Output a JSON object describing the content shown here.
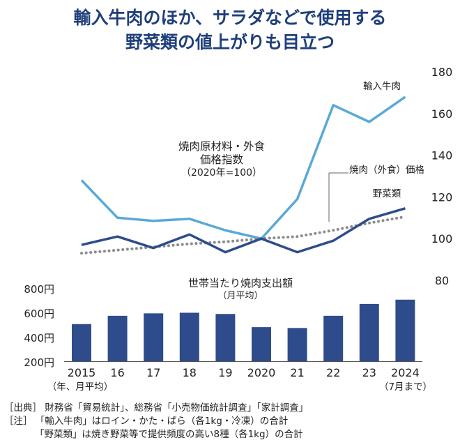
{
  "title_lines": [
    "輸入牛肉のほか、サラダなどで使用する",
    "野菜類の値上がりも目立つ"
  ],
  "chart_data": [
    {
      "type": "line",
      "title_lines": [
        "焼肉原材料・外食",
        "価格指数",
        "（2020年=100）"
      ],
      "x": [
        2015,
        2016,
        2017,
        2018,
        2019,
        2020,
        2021,
        2022,
        2023,
        2024
      ],
      "y_ticks": [
        180,
        160,
        140,
        120,
        100,
        80
      ],
      "ylim": [
        80,
        180
      ],
      "series": [
        {
          "name": "輸入牛肉",
          "color": "#5aa9d6",
          "style": "solid",
          "values": [
            128,
            110,
            108.5,
            109.5,
            104,
            100,
            119,
            164,
            156,
            168
          ]
        },
        {
          "name": "焼肉（外食）価格",
          "color": "#8c8c8c",
          "style": "dotted",
          "values": [
            93,
            94.5,
            96,
            97.5,
            98.5,
            100,
            101,
            104,
            107.5,
            110.5
          ]
        },
        {
          "name": "野菜類",
          "color": "#2e4c8c",
          "style": "solid",
          "values": [
            97,
            101,
            95.5,
            102,
            93.5,
            100,
            93.5,
            99,
            109.5,
            114.5
          ]
        }
      ]
    },
    {
      "type": "bar",
      "title_lines": [
        "世帯当たり焼肉支出額",
        "（月平均）"
      ],
      "categories": [
        "2015",
        "16",
        "17",
        "18",
        "19",
        "2020",
        "21",
        "22",
        "23",
        "2024"
      ],
      "values": [
        510,
        578,
        598,
        603,
        593,
        485,
        478,
        578,
        675,
        710
      ],
      "color": "#2e4c8c",
      "y_ticks": [
        "800円",
        "600円",
        "400円",
        "200円"
      ],
      "ylim": [
        200,
        800
      ],
      "x_sublabel_first": "（年、月平均）",
      "x_sublabel_last": "（7月まで）"
    }
  ],
  "notes": [
    "［出典］ 財務省「貿易統計」、総務省「小売物価統計調査」「家計調査」",
    "［注］ 「輸入牛肉」はロイン・かた・ばら（各1kg・冷凍）の合計",
    "「野菜類」は焼き野菜等で提供頻度の高い8種（各1kg）の合計"
  ]
}
